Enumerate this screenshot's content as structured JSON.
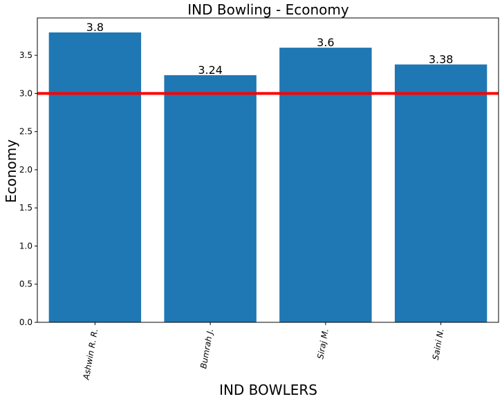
{
  "chart_data": {
    "type": "bar",
    "title": "IND Bowling - Economy",
    "xlabel": "IND BOWLERS",
    "ylabel": "Economy",
    "categories": [
      "Ashwin R. R.",
      "Bumrah J.",
      "Siraj M.",
      "Saini N."
    ],
    "values": [
      3.8,
      3.24,
      3.6,
      3.38
    ],
    "data_labels": [
      "3.8",
      "3.24",
      "3.6",
      "3.38"
    ],
    "ylim": [
      0,
      3.99
    ],
    "yticks": [
      0.0,
      0.5,
      1.0,
      1.5,
      2.0,
      2.5,
      3.0,
      3.5
    ],
    "ytick_labels": [
      "0.0",
      "0.5",
      "1.0",
      "1.5",
      "2.0",
      "2.5",
      "3.0",
      "3.5"
    ],
    "reference_line": {
      "y": 3.0,
      "color": "#ff0000"
    },
    "bar_color": "#1f77b4",
    "grid": false,
    "legend": "none"
  }
}
